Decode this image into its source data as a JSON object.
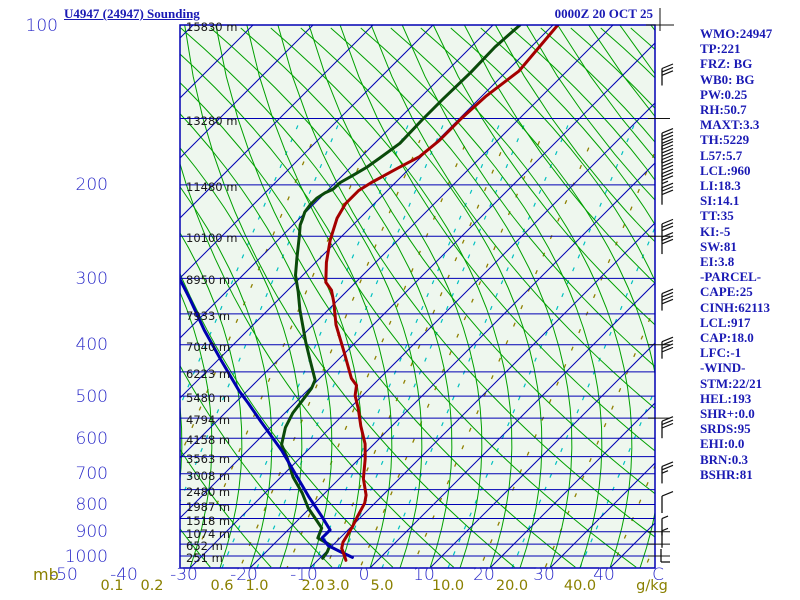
{
  "window": {
    "title": "U4947 (24947) Sounding",
    "datetime": "0000Z 20 OCT 25"
  },
  "colors": {
    "plot_background": "#eef7ee",
    "grid_blue": "#0000b4",
    "adiabat_green": "#00a000",
    "mixing_cyan": "#00c0c0",
    "mixing_olive": "#8f8000",
    "temperature_curve": "#a50000",
    "dewpoint_curve": "#0000b0",
    "wet_bulb_curve": "#0a4a0a",
    "text_blue": "#1a1ab4",
    "axis_label_blue": "#2a2ac8",
    "axis_label_olive": "#8a8000",
    "barb_black": "#111111"
  },
  "stats_panel": {
    "lines": [
      "WMO:24947",
      "TP:221",
      "FRZ: BG",
      "WB0: BG",
      "PW:0.25",
      "RH:50.7",
      "MAXT:3.3",
      "TH:5229",
      "L57:5.7",
      "LCL:960",
      "LI:18.3",
      "SI:14.1",
      "TT:35",
      "KI:-5",
      "SW:81",
      "EI:3.8",
      "-PARCEL-",
      "CAPE:25",
      "CINH:62113",
      "LCL:917",
      "CAP:18.0",
      "LFC:-1",
      "-WIND-",
      "STM:22/21",
      "HEL:193",
      "SHR+:0.0",
      "SRDS:95",
      "EHI:0.0",
      "BRN:0.3",
      "BSHR:81"
    ]
  },
  "chart_data": {
    "type": "skew-t-log-p-sounding",
    "title": "U4947 (24947) Sounding",
    "datetime": "0000Z 20 OCT 25",
    "pressure_axis": {
      "unit": "mb",
      "range_mb": [
        100,
        1050
      ],
      "ticks_mb": [
        100,
        200,
        300,
        400,
        500,
        600,
        700,
        800,
        900,
        1000
      ],
      "isobar_step_mb": 50
    },
    "height_labels": {
      "pressures_mb": [
        100,
        150,
        200,
        250,
        300,
        350,
        400,
        450,
        500,
        550,
        600,
        650,
        700,
        750,
        800,
        850,
        900,
        950,
        1000
      ],
      "labels": [
        "15830 m",
        "13280 m",
        "11480 m",
        "10100 m",
        "8950 m",
        "7933 m",
        "7040 m",
        "6223 m",
        "5480 m",
        "4794 m",
        "4158 m",
        "3563 m",
        "3008 m",
        "2480 m",
        "1987 m",
        "1518 m",
        "1074 m",
        "652 m",
        "251 m"
      ]
    },
    "temp_axis": {
      "unit": "C",
      "ticks_c": [
        -50,
        -40,
        -30,
        -20,
        -10,
        0,
        10,
        20,
        30,
        40
      ],
      "isotherm_step_c": 10,
      "skew_deg": 45
    },
    "mixing_ratio_axis": {
      "unit": "g/kg",
      "ticks": [
        0.1,
        0.2,
        0.6,
        1.0,
        2.0,
        3.0,
        5.0,
        10.0,
        20.0,
        40.0
      ]
    },
    "series": [
      {
        "name": "temperature",
        "color": "#a50000",
        "points": [
          [
            100,
            -59.2
          ],
          [
            122,
            -58.0
          ],
          [
            136,
            -59.3
          ],
          [
            150,
            -59.7
          ],
          [
            165,
            -59.7
          ],
          [
            177,
            -60.3
          ],
          [
            186,
            -62.0
          ],
          [
            198,
            -64.0
          ],
          [
            205,
            -64.8
          ],
          [
            217,
            -64.8
          ],
          [
            231,
            -63.8
          ],
          [
            254,
            -61.3
          ],
          [
            280,
            -58.2
          ],
          [
            305,
            -55.0
          ],
          [
            316,
            -52.7
          ],
          [
            333,
            -50.3
          ],
          [
            367,
            -46.2
          ],
          [
            413,
            -40.3
          ],
          [
            463,
            -34.7
          ],
          [
            477,
            -32.7
          ],
          [
            499,
            -31.2
          ],
          [
            528,
            -28.5
          ],
          [
            569,
            -25.2
          ],
          [
            615,
            -21.5
          ],
          [
            656,
            -19.0
          ],
          [
            715,
            -16.0
          ],
          [
            768,
            -12.8
          ],
          [
            795,
            -11.7
          ],
          [
            841,
            -10.7
          ],
          [
            881,
            -9.8
          ],
          [
            942,
            -8.8
          ],
          [
            967,
            -8.0
          ],
          [
            1001,
            -6.2
          ],
          [
            1019,
            -5.3
          ]
        ]
      },
      {
        "name": "dewpoint",
        "color": "#0000b0",
        "points": [
          [
            115,
            -126.0
          ],
          [
            126,
            -122.0
          ],
          [
            140,
            -117.3
          ],
          [
            154,
            -113.0
          ],
          [
            176,
            -107.3
          ],
          [
            198,
            -101.8
          ],
          [
            220,
            -96.5
          ],
          [
            246,
            -91.0
          ],
          [
            268,
            -86.5
          ],
          [
            294,
            -81.2
          ],
          [
            329,
            -74.7
          ],
          [
            376,
            -67.2
          ],
          [
            429,
            -59.3
          ],
          [
            489,
            -51.3
          ],
          [
            516,
            -47.7
          ],
          [
            559,
            -42.5
          ],
          [
            633,
            -34.3
          ],
          [
            710,
            -27.3
          ],
          [
            772,
            -22.2
          ],
          [
            840,
            -16.8
          ],
          [
            893,
            -13.0
          ],
          [
            924,
            -13.0
          ],
          [
            956,
            -10.7
          ],
          [
            981,
            -7.7
          ],
          [
            1006,
            -4.7
          ]
        ]
      },
      {
        "name": "wet_bulb",
        "color": "#0a4a0a",
        "points": [
          [
            100,
            -65.5
          ],
          [
            110,
            -66.0
          ],
          [
            123,
            -65.8
          ],
          [
            138,
            -66.0
          ],
          [
            151,
            -66.0
          ],
          [
            167,
            -65.8
          ],
          [
            178,
            -66.7
          ],
          [
            185,
            -67.3
          ],
          [
            192,
            -68.3
          ],
          [
            198,
            -69.2
          ],
          [
            204,
            -69.3
          ],
          [
            207,
            -70.0
          ],
          [
            212,
            -70.5
          ],
          [
            218,
            -70.5
          ],
          [
            225,
            -70.2
          ],
          [
            233,
            -69.3
          ],
          [
            238,
            -68.8
          ],
          [
            249,
            -67.2
          ],
          [
            275,
            -63.8
          ],
          [
            296,
            -61.2
          ],
          [
            318,
            -58.0
          ],
          [
            344,
            -54.7
          ],
          [
            396,
            -48.3
          ],
          [
            427,
            -44.7
          ],
          [
            466,
            -40.5
          ],
          [
            483,
            -39.7
          ],
          [
            509,
            -39.2
          ],
          [
            538,
            -38.7
          ],
          [
            573,
            -37.5
          ],
          [
            617,
            -35.3
          ],
          [
            658,
            -31.8
          ],
          [
            710,
            -28.0
          ],
          [
            761,
            -23.8
          ],
          [
            812,
            -20.3
          ],
          [
            848,
            -17.5
          ],
          [
            886,
            -14.7
          ],
          [
            925,
            -13.7
          ],
          [
            953,
            -10.5
          ],
          [
            983,
            -9.8
          ],
          [
            1010,
            -9.5
          ]
        ]
      }
    ],
    "wind_barbs": [
      {
        "p": 130,
        "kt": 30
      },
      {
        "p": 172,
        "kt": 40
      },
      {
        "p": 182,
        "kt": 40
      },
      {
        "p": 193,
        "kt": 40
      },
      {
        "p": 205,
        "kt": 35
      },
      {
        "p": 218,
        "kt": 30
      },
      {
        "p": 255,
        "kt": 30
      },
      {
        "p": 270,
        "kt": 30
      },
      {
        "p": 345,
        "kt": 40
      },
      {
        "p": 425,
        "kt": 40
      },
      {
        "p": 600,
        "kt": 30
      },
      {
        "p": 730,
        "kt": 25
      },
      {
        "p": 830,
        "kt": 10
      },
      {
        "p": 915,
        "kt": 5
      },
      {
        "p": 965,
        "kt": 5
      }
    ],
    "right_edge_tick_levels_mb": [
      150,
      250,
      400,
      550,
      900,
      950,
      1000
    ],
    "legend": "red=temperature, blue=dewpoint, dark green=wet-bulb"
  }
}
